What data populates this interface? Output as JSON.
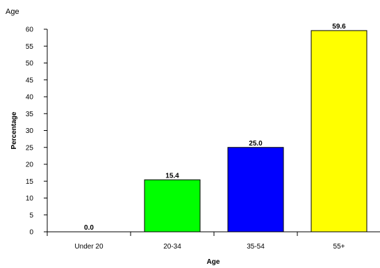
{
  "chart_data": {
    "type": "bar",
    "title": "Age",
    "xlabel": "Age",
    "ylabel": "Percentage",
    "categories": [
      "Under 20",
      "20-34",
      "35-54",
      "55+"
    ],
    "values": [
      0.0,
      15.4,
      25.0,
      59.6
    ],
    "value_labels": [
      "0.0",
      "15.4",
      "25.0",
      "59.6"
    ],
    "colors": [
      "#ffffff",
      "#00ff00",
      "#0000ff",
      "#ffff00"
    ],
    "ylim": [
      0,
      60
    ],
    "yticks": [
      0,
      5,
      10,
      15,
      20,
      25,
      30,
      35,
      40,
      45,
      50,
      55,
      60
    ],
    "grid": false,
    "legend": "none"
  }
}
